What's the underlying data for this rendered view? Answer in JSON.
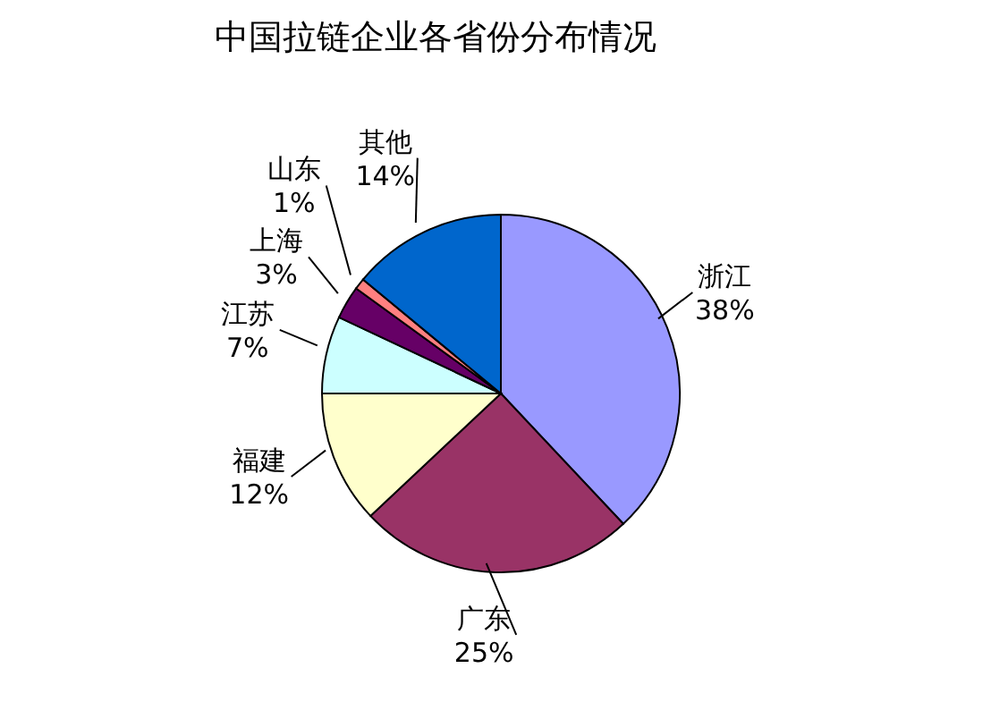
{
  "chart_data": {
    "type": "pie",
    "title": "中国拉链企业各省份分布情况",
    "categories": [
      "浙江",
      "广东",
      "福建",
      "江苏",
      "上海",
      "山东",
      "其他"
    ],
    "values": [
      38,
      25,
      12,
      7,
      3,
      1,
      14
    ],
    "value_labels": [
      "38%",
      "25%",
      "12%",
      "7%",
      "3%",
      "1%",
      "14%"
    ],
    "colors": [
      "#9999ff",
      "#993366",
      "#ffffcc",
      "#ccffff",
      "#660066",
      "#ff8080",
      "#0066cc"
    ],
    "legend": false
  }
}
